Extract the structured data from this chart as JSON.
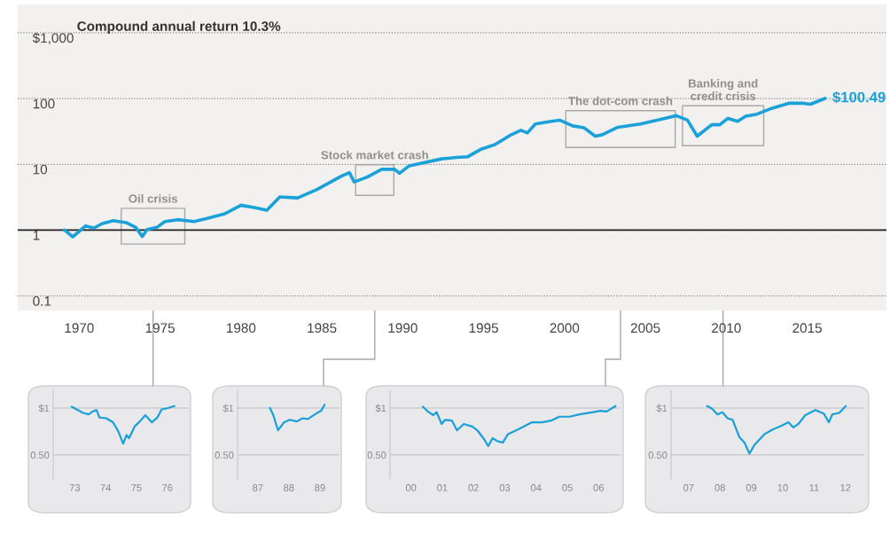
{
  "chart_data": [
    {
      "type": "line",
      "log": "y",
      "grid": "y",
      "color": "#1ba1d8",
      "x": [
        1969.1,
        1969.6,
        1970.4,
        1970.9,
        1971.4,
        1972.1,
        1972.9,
        1973.5,
        1973.9,
        1974.2,
        1974.8,
        1975.3,
        1976.1,
        1977.1,
        1977.9,
        1979.0,
        1980.0,
        1980.9,
        1981.6,
        1982.4,
        1983.5,
        1984.7,
        1986.2,
        1986.7,
        1987.0,
        1987.8,
        1988.7,
        1989.5,
        1989.8,
        1990.4,
        1992.4,
        1993.3,
        1994.0,
        1994.8,
        1995.7,
        1996.6,
        1997.3,
        1997.7,
        1998.2,
        1999.2,
        1999.7,
        2000.5,
        2001.2,
        2001.9,
        2002.3,
        2003.3,
        2004.7,
        2006.2,
        2006.9,
        2007.6,
        2008.2,
        2009.1,
        2009.6,
        2010.1,
        2010.7,
        2011.2,
        2011.9,
        2012.8,
        2013.9,
        2014.7,
        2015.2,
        2016.1
      ],
      "values": [
        1.0,
        0.79,
        1.16,
        1.07,
        1.25,
        1.39,
        1.3,
        1.1,
        0.8,
        1.02,
        1.1,
        1.35,
        1.44,
        1.35,
        1.5,
        1.77,
        2.39,
        2.18,
        2.0,
        3.19,
        3.09,
        4.14,
        6.6,
        7.5,
        5.4,
        6.4,
        8.4,
        8.4,
        7.3,
        9.5,
        12.1,
        12.7,
        13.0,
        16.8,
        20,
        27.3,
        33,
        30,
        41,
        45,
        47,
        38.5,
        36,
        26.8,
        28,
        36.6,
        41,
        50,
        55,
        47,
        26.8,
        40,
        40,
        50,
        45,
        54,
        58,
        71,
        85,
        85,
        82,
        100.49
      ],
      "value_labels": [
        null,
        null,
        null,
        null,
        null,
        null,
        null,
        null,
        null,
        null,
        null,
        null,
        null,
        null,
        null,
        null,
        null,
        null,
        null,
        null,
        null,
        null,
        null,
        null,
        null,
        null,
        null,
        null,
        null,
        null,
        null,
        null,
        null,
        null,
        null,
        null,
        null,
        null,
        null,
        null,
        null,
        null,
        null,
        null,
        null,
        null,
        null,
        null,
        null,
        null,
        null,
        null,
        null,
        null,
        null,
        null,
        null,
        null,
        null,
        null,
        null,
        "$100.49"
      ],
      "xlim": [
        1966.2,
        2019.9
      ],
      "xticks": [
        1970,
        1975,
        1980,
        1985,
        1990,
        1995,
        2000,
        2005,
        2010,
        2015
      ],
      "ylim": [
        0.06,
        2700
      ],
      "yticks": [
        {
          "value": 1000,
          "label": "$1,000"
        },
        100,
        10,
        1,
        0.1
      ],
      "ref_lines": [
        {
          "axis": "y",
          "value": 1,
          "color": "#222222",
          "line_style": "solid"
        }
      ],
      "annotations": [
        "Compound annual return 10.3%",
        "Oil crisis",
        "Stock market crash",
        "The dot-com crash",
        "Banking and\ncredit crisis"
      ]
    },
    {
      "type": "line",
      "log": "y",
      "grid": "y",
      "color": "#1ba1d8",
      "x": [
        1972.9,
        1973.27,
        1973.45,
        1973.58,
        1973.71,
        1973.8,
        1974.02,
        1974.24,
        1974.41,
        1974.57,
        1974.68,
        1974.76,
        1974.94,
        1975.11,
        1975.29,
        1975.5,
        1975.68,
        1975.82,
        1976.03,
        1976.23
      ],
      "values": [
        1.02,
        0.93,
        0.91,
        0.95,
        0.97,
        0.87,
        0.86,
        0.81,
        0.71,
        0.59,
        0.67,
        0.64,
        0.76,
        0.82,
        0.9,
        0.81,
        0.87,
        0.98,
        1.0,
        1.03
      ],
      "xlim": [
        1972.3,
        1976.7
      ],
      "xticks": [
        {
          "value": 1973,
          "label": "73"
        },
        {
          "value": 1974,
          "label": "74"
        },
        {
          "value": 1975,
          "label": "75"
        },
        {
          "value": 1976,
          "label": "76"
        }
      ],
      "ylim": [
        0.35,
        1.3
      ],
      "yticks": [
        {
          "value": 1,
          "label": "$1"
        },
        {
          "value": 0.5,
          "label": "0.50"
        }
      ]
    },
    {
      "type": "line",
      "log": "y",
      "grid": "y",
      "color": "#1ba1d8",
      "x": [
        1987.39,
        1987.5,
        1987.65,
        1987.85,
        1988.03,
        1988.26,
        1988.44,
        1988.62,
        1988.76,
        1988.95,
        1989.04,
        1989.15
      ],
      "values": [
        1.0,
        0.9,
        0.72,
        0.81,
        0.84,
        0.82,
        0.86,
        0.85,
        0.89,
        0.94,
        0.96,
        1.05
      ],
      "xlim": [
        1986.35,
        1989.63
      ],
      "xticks": [
        {
          "value": 1987,
          "label": "87"
        },
        {
          "value": 1988,
          "label": "88"
        },
        {
          "value": 1989,
          "label": "89"
        }
      ],
      "ylim": [
        0.35,
        1.3
      ],
      "yticks": [
        {
          "value": 1,
          "label": "$1"
        },
        {
          "value": 0.5,
          "label": "0.50"
        }
      ]
    },
    {
      "type": "line",
      "log": "y",
      "grid": "y",
      "color": "#1ba1d8",
      "x": [
        2000.38,
        2000.54,
        2000.71,
        2000.82,
        2000.98,
        2001.09,
        2001.31,
        2001.47,
        2001.69,
        2001.96,
        2002.12,
        2002.34,
        2002.47,
        2002.61,
        2002.78,
        2002.94,
        2003.1,
        2003.43,
        2003.87,
        2004.19,
        2004.48,
        2004.74,
        2005.07,
        2005.39,
        2005.83,
        2006.05,
        2006.26,
        2006.54
      ],
      "values": [
        1.02,
        0.95,
        0.9,
        0.94,
        0.79,
        0.84,
        0.83,
        0.72,
        0.79,
        0.76,
        0.72,
        0.63,
        0.57,
        0.64,
        0.61,
        0.6,
        0.68,
        0.73,
        0.81,
        0.81,
        0.83,
        0.88,
        0.88,
        0.91,
        0.94,
        0.96,
        0.95,
        1.03
      ],
      "xlim": [
        1999.33,
        2006.7
      ],
      "xticks": [
        {
          "value": 2000,
          "label": "00"
        },
        {
          "value": 2001,
          "label": "01"
        },
        {
          "value": 2002,
          "label": "02"
        },
        {
          "value": 2003,
          "label": "03"
        },
        {
          "value": 2004,
          "label": "04"
        },
        {
          "value": 2005,
          "label": "05"
        },
        {
          "value": 2006,
          "label": "06"
        }
      ],
      "ylim": [
        0.35,
        1.3
      ],
      "yticks": [
        {
          "value": 1,
          "label": "$1"
        },
        {
          "value": 0.5,
          "label": "0.50"
        }
      ]
    },
    {
      "type": "line",
      "log": "y",
      "grid": "y",
      "color": "#1ba1d8",
      "x": [
        2007.59,
        2007.75,
        2007.92,
        2008.08,
        2008.24,
        2008.4,
        2008.62,
        2008.78,
        2008.94,
        2009.1,
        2009.42,
        2009.69,
        2009.96,
        2010.18,
        2010.34,
        2010.5,
        2010.72,
        2011.04,
        2011.31,
        2011.47,
        2011.58,
        2011.8,
        2012.01
      ],
      "values": [
        1.03,
        0.99,
        0.91,
        0.94,
        0.86,
        0.84,
        0.65,
        0.6,
        0.51,
        0.58,
        0.68,
        0.73,
        0.77,
        0.81,
        0.75,
        0.79,
        0.9,
        0.97,
        0.92,
        0.81,
        0.91,
        0.93,
        1.03
      ],
      "xlim": [
        2006.44,
        2012.6
      ],
      "xticks": [
        {
          "value": 2007,
          "label": "07"
        },
        {
          "value": 2008,
          "label": "08"
        },
        {
          "value": 2009,
          "label": "09"
        },
        {
          "value": 2010,
          "label": "10"
        },
        {
          "value": 2011,
          "label": "11"
        },
        {
          "value": 2012,
          "label": "12"
        }
      ],
      "ylim": [
        0.35,
        1.3
      ],
      "yticks": [
        {
          "value": 1,
          "label": "$1"
        },
        {
          "value": 0.5,
          "label": "0.50"
        }
      ]
    }
  ]
}
